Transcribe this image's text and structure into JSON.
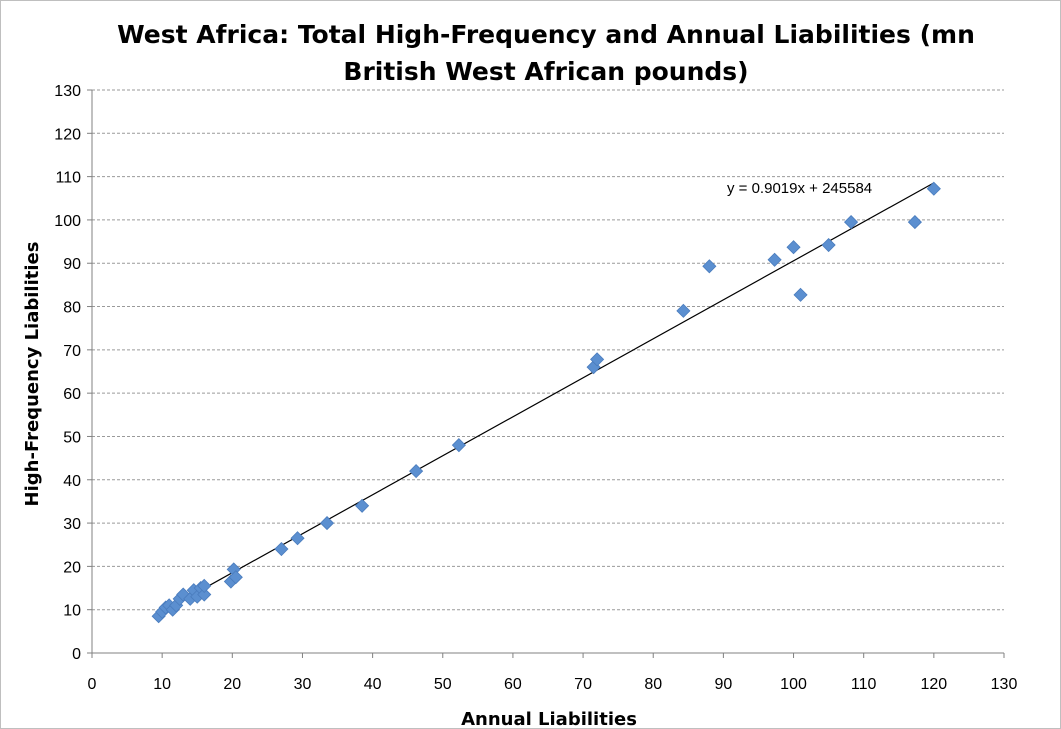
{
  "chart_data": {
    "type": "scatter",
    "title_lines": [
      "West Africa: Total High-Frequency and Annual Liabilities (mn",
      "British West African pounds)"
    ],
    "xlabel": "Annual Liabilities",
    "ylabel": "High-Frequency Liabilities",
    "xlim": [
      0,
      130
    ],
    "ylim": [
      0,
      130
    ],
    "xticks": [
      0,
      10,
      20,
      30,
      40,
      50,
      60,
      70,
      80,
      90,
      100,
      110,
      120,
      130
    ],
    "yticks": [
      0,
      10,
      20,
      30,
      40,
      50,
      60,
      70,
      80,
      90,
      100,
      110,
      120,
      130
    ],
    "grid": "horizontal dashed",
    "legend": "none",
    "marker": "diamond",
    "marker_color": "#5b8fd0",
    "trendline": {
      "label": "y = 0.9019x + 245584",
      "x_range": [
        9.5,
        120
      ]
    },
    "points": [
      {
        "x": 9.5,
        "y": 8.5
      },
      {
        "x": 10.0,
        "y": 9.5
      },
      {
        "x": 10.5,
        "y": 10.5
      },
      {
        "x": 11.0,
        "y": 11.0
      },
      {
        "x": 11.5,
        "y": 10.0
      },
      {
        "x": 12.0,
        "y": 11.0
      },
      {
        "x": 12.5,
        "y": 12.5
      },
      {
        "x": 13.0,
        "y": 13.5
      },
      {
        "x": 14.0,
        "y": 12.5
      },
      {
        "x": 14.5,
        "y": 14.5
      },
      {
        "x": 15.0,
        "y": 13.0
      },
      {
        "x": 15.5,
        "y": 15.0
      },
      {
        "x": 16.0,
        "y": 13.5
      },
      {
        "x": 16.0,
        "y": 15.5
      },
      {
        "x": 19.8,
        "y": 16.5
      },
      {
        "x": 20.2,
        "y": 19.3
      },
      {
        "x": 20.5,
        "y": 17.5
      },
      {
        "x": 27.0,
        "y": 24.0
      },
      {
        "x": 29.3,
        "y": 26.5
      },
      {
        "x": 33.5,
        "y": 30.0
      },
      {
        "x": 38.5,
        "y": 34.0
      },
      {
        "x": 46.2,
        "y": 42.0
      },
      {
        "x": 52.3,
        "y": 48.0
      },
      {
        "x": 71.5,
        "y": 66.0
      },
      {
        "x": 72.0,
        "y": 67.8
      },
      {
        "x": 84.3,
        "y": 79.0
      },
      {
        "x": 88.0,
        "y": 89.3
      },
      {
        "x": 97.3,
        "y": 90.8
      },
      {
        "x": 100.0,
        "y": 93.7
      },
      {
        "x": 101.0,
        "y": 82.7
      },
      {
        "x": 105.0,
        "y": 94.2
      },
      {
        "x": 108.2,
        "y": 99.5
      },
      {
        "x": 117.3,
        "y": 99.5
      },
      {
        "x": 120.0,
        "y": 107.2
      }
    ]
  }
}
